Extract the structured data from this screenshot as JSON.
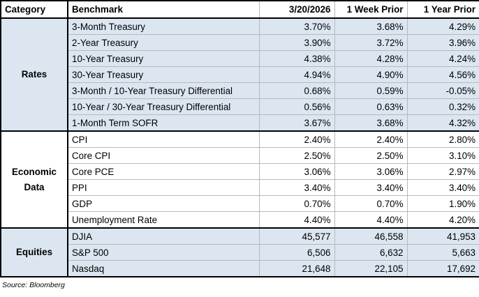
{
  "table": {
    "header": [
      "Category",
      "Benchmark",
      "3/20/2026",
      "1 Week Prior",
      "1 Year Prior"
    ],
    "groups": [
      {
        "category": "Rates",
        "shaded": true,
        "rows": [
          [
            "3-Month Treasury",
            "3.70%",
            "3.68%",
            "4.29%"
          ],
          [
            "2-Year Treasury",
            "3.90%",
            "3.72%",
            "3.96%"
          ],
          [
            "10-Year Treasury",
            "4.38%",
            "4.28%",
            "4.24%"
          ],
          [
            "30-Year Treasury",
            "4.94%",
            "4.90%",
            "4.56%"
          ],
          [
            "3-Month / 10-Year Treasury Differential",
            "0.68%",
            "0.59%",
            "-0.05%"
          ],
          [
            "10-Year / 30-Year Treasury Differential",
            "0.56%",
            "0.63%",
            "0.32%"
          ],
          [
            "1-Month Term SOFR",
            "3.67%",
            "3.68%",
            "4.32%"
          ]
        ]
      },
      {
        "category": "Economic Data",
        "shaded": false,
        "rows": [
          [
            "CPI",
            "2.40%",
            "2.40%",
            "2.80%"
          ],
          [
            "Core CPI",
            "2.50%",
            "2.50%",
            "3.10%"
          ],
          [
            "Core PCE",
            "3.06%",
            "3.06%",
            "2.97%"
          ],
          [
            "PPI",
            "3.40%",
            "3.40%",
            "3.40%"
          ],
          [
            "GDP",
            "0.70%",
            "0.70%",
            "1.90%"
          ],
          [
            "Unemployment Rate",
            "4.40%",
            "4.40%",
            "4.20%"
          ]
        ]
      },
      {
        "category": "Equities",
        "shaded": true,
        "rows": [
          [
            "DJIA",
            "45,577",
            "46,558",
            "41,953"
          ],
          [
            "S&P 500",
            "6,506",
            "6,632",
            "5,663"
          ],
          [
            "Nasdaq",
            "21,648",
            "22,105",
            "17,692"
          ]
        ]
      }
    ],
    "source": "Source: Bloomberg"
  }
}
